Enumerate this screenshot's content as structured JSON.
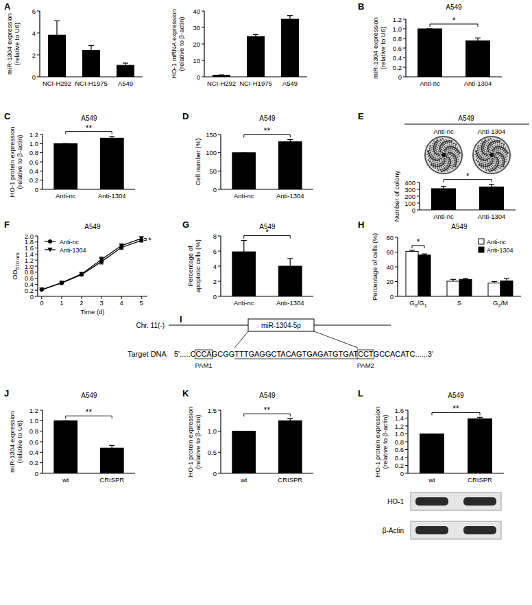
{
  "chart_data": [
    {
      "type": "bar",
      "panel": "A",
      "y_label": [
        "miR-1304 expression",
        "(relative to U6)"
      ],
      "categories": [
        "NCI-H292",
        "NCI-H1975",
        "A549"
      ],
      "values": [
        3.8,
        2.4,
        1.05
      ],
      "errors": [
        1.3,
        0.45,
        0.2
      ],
      "color": "#000000",
      "ylim": [
        0,
        6
      ],
      "yticks": [
        0,
        2,
        4,
        6
      ]
    },
    {
      "type": "bar",
      "y_label": [
        "HO-1 mRNA expression",
        "(relative to β-actin)"
      ],
      "categories": [
        "NCI-H292",
        "NCI-H1975",
        "A549"
      ],
      "values": [
        1,
        24.5,
        35
      ],
      "errors": [
        0.2,
        1.2,
        2.2
      ],
      "color": "#000000",
      "ylim": [
        0,
        40
      ],
      "yticks": [
        0,
        10,
        20,
        30,
        40
      ]
    },
    {
      "type": "bar",
      "panel": "B",
      "title": "A549",
      "y_label": [
        "miR-1304 expression",
        "(relative to U6)"
      ],
      "categories": [
        "Anti-nc",
        "Anti-1304"
      ],
      "values": [
        1,
        0.75
      ],
      "errors": [
        0,
        0.06
      ],
      "color": "#000000",
      "ylim": [
        0,
        1.2
      ],
      "yticks": [
        0,
        0.2,
        0.4,
        0.6,
        0.8,
        {
          "value": 1,
          "label": "1.0"
        },
        1.2
      ],
      "significance": {
        "text": "*"
      }
    },
    {
      "type": "bar",
      "panel": "C",
      "title": "A549",
      "y_label": [
        "HO-1 protein expression",
        "(relative to β-actin)"
      ],
      "categories": [
        "Anti-nc",
        "Anti-1304"
      ],
      "values": [
        1,
        1.12
      ],
      "errors": [
        0,
        0.04
      ],
      "color": "#000000",
      "ylim": [
        0,
        1.2
      ],
      "yticks": [
        0,
        0.2,
        0.4,
        0.6,
        0.8,
        {
          "value": 1,
          "label": "1.0"
        },
        1.2
      ],
      "significance": {
        "text": "**"
      }
    },
    {
      "type": "bar",
      "panel": "D",
      "title": "A549",
      "y_label": [
        "Cell number (%)"
      ],
      "categories": [
        "Anti-nc",
        "Anti-1304"
      ],
      "values": [
        100,
        130
      ],
      "errors": [
        0,
        6
      ],
      "color": "#000000",
      "ylim": [
        0,
        150
      ],
      "yticks": [
        0,
        50,
        100,
        150
      ],
      "significance": {
        "text": "**"
      }
    },
    {
      "type": "bar",
      "panel": "E",
      "title": "A549",
      "image_labels": [
        "Anti-nc",
        "Anti-1304"
      ],
      "y_label": [
        "Number of colony"
      ],
      "categories": [
        "Anti-nc",
        "Anti-1304"
      ],
      "values": [
        310,
        335
      ],
      "errors": [
        35,
        38
      ],
      "color": "#000000",
      "ylim": [
        0,
        400
      ],
      "yticks": [
        0,
        100,
        200,
        300,
        400
      ],
      "significance": {
        "text": "*"
      }
    },
    {
      "type": "line",
      "panel": "F",
      "title": "A549",
      "y_label": [
        "OD"
      ],
      "y_label_subscript": "570 nm",
      "x_label": "Time (d)",
      "x": [
        0,
        1,
        2,
        3,
        4,
        5
      ],
      "xlim": [
        -0.2,
        5.3
      ],
      "xticks": [
        0,
        1,
        2,
        3,
        4,
        5
      ],
      "ylim": [
        0,
        2
      ],
      "yticks": [
        0,
        0.2,
        0.4,
        0.6,
        0.8,
        {
          "value": 1,
          "label": "1.0"
        },
        1.2,
        1.4,
        1.6,
        1.8,
        {
          "value": 2,
          "label": "2.0"
        }
      ],
      "legend": "upper left",
      "series": [
        {
          "name": "Anti-nc",
          "color": "#000000",
          "marker": "circle",
          "values": [
            0.22,
            0.44,
            0.72,
            1.15,
            1.62,
            1.85
          ],
          "errors": [
            0.01,
            0.02,
            0.04,
            0.08,
            0.06,
            0.05
          ]
        },
        {
          "name": "Anti-1304",
          "color": "#000000",
          "marker": "triangle-down",
          "values": [
            0.22,
            0.45,
            0.74,
            1.22,
            1.68,
            1.92
          ],
          "errors": [
            0.01,
            0.02,
            0.04,
            0.08,
            0.06,
            0.05
          ]
        }
      ],
      "significance": {
        "text": "*",
        "x": 5
      }
    },
    {
      "type": "bar",
      "panel": "G",
      "title": "A549",
      "y_label": [
        "Percentage of",
        "apoptotic cells (%)"
      ],
      "categories": [
        "Anti-nc",
        "Anti-1304"
      ],
      "values": [
        5.9,
        4.0
      ],
      "errors": [
        1.5,
        1.0
      ],
      "color": "#000000",
      "ylim": [
        0,
        8
      ],
      "yticks": [
        0,
        2,
        4,
        6,
        8
      ],
      "significance": {
        "text": "*"
      }
    },
    {
      "type": "bar",
      "panel": "H",
      "title": "A549",
      "y_label": [
        "Percentage of cells (%)"
      ],
      "categories": [
        "G0/G1",
        "S",
        "G2/M"
      ],
      "series": [
        {
          "name": "Anti-nc",
          "color": "#ffffff",
          "values": [
            61,
            20.5,
            18
          ],
          "errors": [
            1.5,
            2.5,
            2
          ]
        },
        {
          "name": "Anti-1304",
          "color": "#000000",
          "values": [
            56,
            23,
            21
          ],
          "errors": [
            1.5,
            1.5,
            3
          ]
        }
      ],
      "ylim": [
        0,
        80
      ],
      "yticks": [
        0,
        20,
        40,
        60,
        80
      ],
      "legend": "upper right",
      "significance": {
        "text": "*",
        "category": "G0/G1"
      }
    },
    {
      "type": "bar",
      "panel": "J",
      "title": "A549",
      "y_label": [
        "miR-1304 expression",
        "(relative to U6)"
      ],
      "categories": [
        "wt",
        "CRISPR"
      ],
      "values": [
        1,
        0.48
      ],
      "errors": [
        0,
        0.05
      ],
      "color": "#000000",
      "ylim": [
        0,
        1.2
      ],
      "yticks": [
        0,
        0.2,
        0.4,
        0.6,
        0.8,
        {
          "value": 1,
          "label": "1.0"
        },
        1.2
      ],
      "significance": {
        "text": "**"
      }
    },
    {
      "type": "bar",
      "panel": "K",
      "title": "A549",
      "y_label": [
        "HO-1 protein expression",
        "(relative to β-actin)"
      ],
      "categories": [
        "wt",
        "CRISPR"
      ],
      "values": [
        1,
        1.25
      ],
      "errors": [
        0,
        0.05
      ],
      "color": "#000000",
      "ylim": [
        0,
        1.5
      ],
      "yticks": [
        0,
        0.5,
        {
          "value": 1,
          "label": "1.0"
        },
        1.5
      ],
      "significance": {
        "text": "**"
      }
    },
    {
      "type": "bar",
      "panel": "L",
      "title": "A549",
      "y_label": [
        "HO-1 protein expression",
        "(relative to β-actin)"
      ],
      "categories": [
        "wt",
        "CRISPR"
      ],
      "values": [
        1,
        1.38
      ],
      "errors": [
        0,
        0.04
      ],
      "color": "#000000",
      "ylim": [
        0,
        1.6
      ],
      "yticks": [
        0,
        0.2,
        0.4,
        0.6,
        0.8,
        {
          "value": 1,
          "label": "1.0"
        },
        1.2,
        1.4,
        1.6
      ],
      "significance": {
        "text": "**"
      },
      "blot_labels": [
        "HO-1",
        "β-Actin"
      ]
    }
  ],
  "diagram": {
    "panel": "I",
    "chromosome": "Chr. 11(-)",
    "gene": "miR-1304-5p",
    "target_label": "Target DNA",
    "sequence": [
      "5'.....C",
      "CCA",
      "GCGG",
      "TTTGAGGCTACAGTGAGATGTGAT",
      "CCT",
      "GCCACATC......3'"
    ],
    "pam_labels": [
      "PAM1",
      "PAM2"
    ]
  }
}
